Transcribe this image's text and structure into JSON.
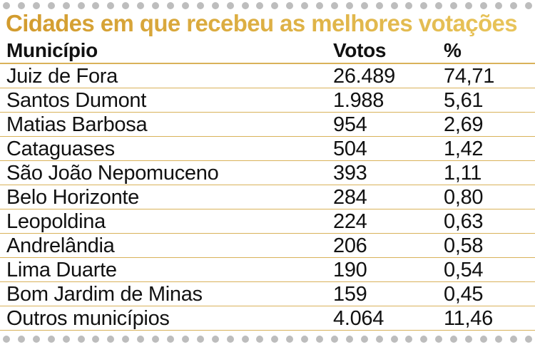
{
  "chart_data": {
    "type": "table",
    "title": "Cidades em que recebeu as melhores votações",
    "columns": [
      "Município",
      "Votos",
      "%"
    ],
    "rows": [
      {
        "municipio": "Juiz de Fora",
        "votos": "26.489",
        "pct": "74,71"
      },
      {
        "municipio": "Santos Dumont",
        "votos": "1.988",
        "pct": "5,61"
      },
      {
        "municipio": "Matias Barbosa",
        "votos": "954",
        "pct": "2,69"
      },
      {
        "municipio": "Cataguases",
        "votos": "504",
        "pct": "1,42"
      },
      {
        "municipio": "São João Nepomuceno",
        "votos": "393",
        "pct": "1,11"
      },
      {
        "municipio": "Belo Horizonte",
        "votos": "284",
        "pct": "0,80"
      },
      {
        "municipio": "Leopoldina",
        "votos": "224",
        "pct": "0,63"
      },
      {
        "municipio": "Andrelândia",
        "votos": "206",
        "pct": "0,58"
      },
      {
        "municipio": "Lima Duarte",
        "votos": "190",
        "pct": "0,54"
      },
      {
        "municipio": "Bom Jardim de Minas",
        "votos": "159",
        "pct": "0,45"
      },
      {
        "municipio": "Outros municípios",
        "votos": "4.064",
        "pct": "11,46"
      }
    ]
  },
  "colors": {
    "title_gradient_start": "#d29b2e",
    "title_gradient_end": "#e8c45a",
    "rule": "#d9b25a",
    "dots": "#bdbdbd",
    "text": "#111111"
  }
}
